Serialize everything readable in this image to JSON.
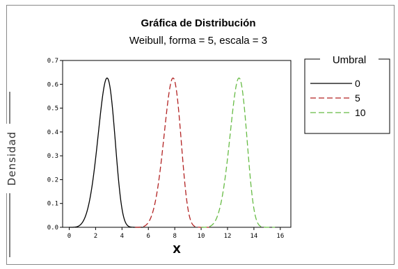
{
  "chart_data": {
    "type": "line",
    "title": "Gráfica de Distribución",
    "subtitle": "Weibull, forma = 5, escala = 3",
    "xlabel": "X",
    "ylabel": "Densidad",
    "xlim": [
      -0.5,
      16.8
    ],
    "ylim": [
      0,
      0.7
    ],
    "x_ticks": [
      0,
      2,
      4,
      6,
      8,
      10,
      12,
      14,
      16
    ],
    "y_ticks": [
      "0.0",
      "0.1",
      "0.2",
      "0.3",
      "0.4",
      "0.5",
      "0.6",
      "0.7"
    ],
    "distribution": {
      "family": "Weibull",
      "shape": 5,
      "scale": 3
    },
    "legend": {
      "title": "Umbral",
      "position": "right"
    },
    "series": [
      {
        "name": "0",
        "threshold": 0,
        "color": "#000000",
        "dash": "solid"
      },
      {
        "name": "5",
        "threshold": 5,
        "color": "#b22222",
        "dash": "dashed"
      },
      {
        "name": "10",
        "threshold": 10,
        "color": "#66bb44",
        "dash": "dashed"
      }
    ]
  }
}
